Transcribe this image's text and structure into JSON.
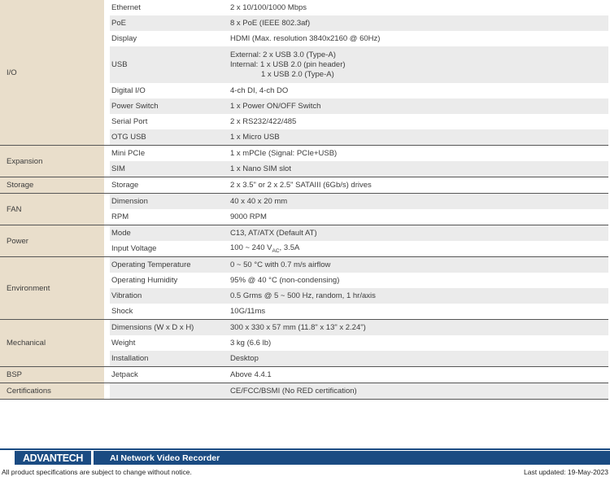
{
  "spec_table": {
    "groups": [
      {
        "category": "I/O",
        "rows": [
          {
            "label": "Ethernet",
            "value": "2 x 10/100/1000 Mbps"
          },
          {
            "label": "PoE",
            "value": "8 x PoE (IEEE 802.3af)"
          },
          {
            "label": "Display",
            "value": "HDMI (Max. resolution 3840x2160 @ 60Hz)"
          },
          {
            "label": "USB",
            "lines": [
              {
                "text": "External: 2 x USB 3.0 (Type-A)",
                "indent": false
              },
              {
                "text": "Internal: 1 x USB 2.0 (pin header)",
                "indent": false
              },
              {
                "text": "1 x USB 2.0 (Type-A)",
                "indent": true
              }
            ]
          },
          {
            "label": "Digital I/O",
            "value": "4-ch DI, 4-ch DO"
          },
          {
            "label": "Power Switch",
            "value": "1 x Power ON/OFF Switch"
          },
          {
            "label": "Serial Port",
            "value": "2 x RS232/422/485"
          },
          {
            "label": "OTG USB",
            "value": "1 x Micro USB"
          }
        ]
      },
      {
        "category": "Expansion",
        "rows": [
          {
            "label": "Mini PCIe",
            "value": "1 x mPCIe (Signal: PCIe+USB)"
          },
          {
            "label": "SIM",
            "value": "1 x Nano SIM slot"
          }
        ]
      },
      {
        "category": "Storage",
        "rows": [
          {
            "label": "Storage",
            "value": "2 x 3.5\" or 2 x 2.5\" SATAIII (6Gb/s) drives"
          }
        ]
      },
      {
        "category": "FAN",
        "rows": [
          {
            "label": "Dimension",
            "value": "40 x 40 x 20 mm"
          },
          {
            "label": "RPM",
            "value": "9000 RPM"
          }
        ]
      },
      {
        "category": "Power",
        "rows": [
          {
            "label": "Mode",
            "value": "C13, AT/ATX (Default AT)"
          },
          {
            "label": "Input Voltage",
            "parts": [
              {
                "t": "100 ~ 240 V"
              },
              {
                "t": "AC",
                "sub": true
              },
              {
                "t": ", 3.5A"
              }
            ]
          }
        ]
      },
      {
        "category": "Environment",
        "rows": [
          {
            "label": "Operating Temperature",
            "value": "0 ~ 50 °C with 0.7 m/s airflow"
          },
          {
            "label": "Operating Humidity",
            "value": "95% @ 40 °C (non-condensing)"
          },
          {
            "label": "Vibration",
            "value": "0.5 Grms @ 5 ~ 500 Hz, random, 1 hr/axis"
          },
          {
            "label": "Shock",
            "value": "10G/11ms"
          }
        ]
      },
      {
        "category": "Mechanical",
        "rows": [
          {
            "label": "Dimensions (W x D x H)",
            "value": "300 x 330 x 57 mm (11.8\" x 13\" x 2.24\")"
          },
          {
            "label": "Weight",
            "value": "3 kg (6.6 lb)"
          },
          {
            "label": "Installation",
            "value": "Desktop"
          }
        ]
      },
      {
        "category": "BSP",
        "rows": [
          {
            "label": "Jetpack",
            "value": "Above 4.4.1"
          }
        ]
      },
      {
        "category": "Certifications",
        "rows": [
          {
            "label": "",
            "value": "CE/FCC/BSMI (No RED certification)"
          }
        ]
      }
    ]
  },
  "footer": {
    "logo_text": "ADVANTECH",
    "product_title": "AI Network Video Recorder",
    "disclaimer": "All product specifications are subject to change without notice.",
    "last_updated": "Last updated: 19-May-2023"
  },
  "colors": {
    "brand_blue": "#1a4b82",
    "category_beige": "#e9decb",
    "row_shade": "#ebebeb",
    "separator": "#565656"
  }
}
